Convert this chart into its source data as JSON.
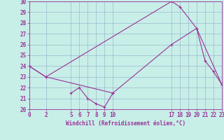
{
  "xlabel": "Windchill (Refroidissement éolien,°C)",
  "ylabel": "",
  "bg_color": "#c8eee8",
  "line_color": "#993399",
  "grid_color": "#99bbcc",
  "line1_x": [
    0,
    2,
    17,
    18,
    20,
    21,
    22,
    23
  ],
  "line1_y": [
    24,
    23,
    30,
    29.5,
    27.5,
    24.5,
    23.5,
    22.3
  ],
  "line2_x": [
    0,
    2,
    10,
    17,
    20,
    23
  ],
  "line2_y": [
    24,
    23,
    21.5,
    26,
    27.5,
    22.3
  ],
  "line3_x": [
    5,
    6,
    7,
    8,
    9,
    10
  ],
  "line3_y": [
    21.5,
    22,
    21,
    20.5,
    20.2,
    21.5
  ],
  "xlim": [
    0,
    23
  ],
  "ylim": [
    20,
    30
  ],
  "yticks": [
    20,
    21,
    22,
    23,
    24,
    25,
    26,
    27,
    28,
    29,
    30
  ],
  "xticks": [
    0,
    2,
    5,
    6,
    7,
    8,
    9,
    10,
    17,
    18,
    19,
    20,
    21,
    22,
    23
  ]
}
